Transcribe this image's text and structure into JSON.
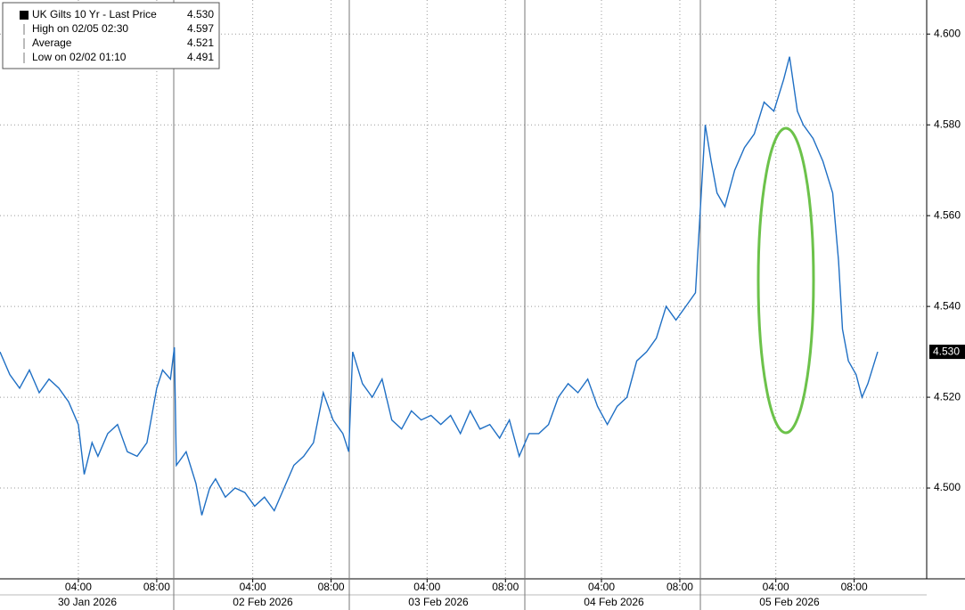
{
  "chart_data": {
    "type": "line",
    "legend": [
      {
        "label": "UK Gilts 10 Yr - Last Price",
        "value": "4.530"
      },
      {
        "label": "High on 02/05 02:30",
        "value": "4.597"
      },
      {
        "label": "Average",
        "value": "4.521"
      },
      {
        "label": "Low on 02/02 01:10",
        "value": "4.491"
      }
    ],
    "last_value": {
      "value": 4.53,
      "label": "4.530"
    },
    "days": [
      "30 Jan 2026",
      "02 Feb 2026",
      "03 Feb 2026",
      "04 Feb 2026",
      "05 Feb 2026"
    ],
    "series": [
      {
        "name": "UK Gilts 10 Yr",
        "color": "#1f6fc4",
        "x": [
          0,
          0.5,
          1,
          1.5,
          2,
          2.5,
          3,
          3.5,
          4,
          4.3,
          4.7,
          5,
          5.5,
          6,
          6.5,
          7,
          7.5,
          8,
          8.3,
          8.7,
          8.9,
          9,
          9.5,
          10,
          10.3,
          10.7,
          11,
          11.5,
          12,
          12.5,
          13,
          13.5,
          14,
          14.5,
          15,
          15.5,
          16,
          16.5,
          17,
          17.5,
          17.8,
          18,
          18.5,
          19,
          19.5,
          20,
          20.5,
          21,
          21.5,
          22,
          22.5,
          23,
          23.5,
          24,
          24.5,
          25,
          25.5,
          26,
          26.5,
          27,
          27.5,
          28,
          28.5,
          29,
          29.5,
          30,
          30.5,
          31,
          31.5,
          32,
          32.5,
          33,
          33.5,
          34,
          34.5,
          35,
          35.5,
          36,
          36.3,
          36.6,
          37,
          37.5,
          38,
          38.5,
          39,
          39.5,
          40,
          40.3,
          40.7,
          41,
          41.5,
          42,
          42.5,
          42.8,
          43,
          43.3,
          43.7,
          44,
          44.3,
          44.8
        ],
        "values": [
          4.53,
          4.525,
          4.522,
          4.526,
          4.521,
          4.524,
          4.522,
          4.519,
          4.514,
          4.503,
          4.51,
          4.507,
          4.512,
          4.514,
          4.508,
          4.507,
          4.51,
          4.522,
          4.526,
          4.524,
          4.531,
          4.505,
          4.508,
          4.501,
          4.494,
          4.5,
          4.502,
          4.498,
          4.5,
          4.499,
          4.496,
          4.498,
          4.495,
          4.5,
          4.505,
          4.507,
          4.51,
          4.521,
          4.515,
          4.512,
          4.508,
          4.53,
          4.523,
          4.52,
          4.524,
          4.515,
          4.513,
          4.517,
          4.515,
          4.516,
          4.514,
          4.516,
          4.512,
          4.517,
          4.513,
          4.514,
          4.511,
          4.515,
          4.507,
          4.512,
          4.512,
          4.514,
          4.52,
          4.523,
          4.521,
          4.524,
          4.518,
          4.514,
          4.518,
          4.52,
          4.528,
          4.53,
          4.533,
          4.54,
          4.537,
          4.54,
          4.543,
          4.58,
          4.572,
          4.565,
          4.562,
          4.57,
          4.575,
          4.578,
          4.585,
          4.583,
          4.59,
          4.595,
          4.583,
          4.58,
          4.577,
          4.572,
          4.565,
          4.55,
          4.535,
          4.528,
          4.525,
          4.52,
          4.523,
          4.53
        ]
      }
    ],
    "xlim": [
      0,
      47.3
    ],
    "xticks": [
      {
        "value": 4,
        "label": "04:00"
      },
      {
        "value": 8,
        "label": "08:00"
      },
      {
        "value": 12.9,
        "label": "04:00"
      },
      {
        "value": 16.9,
        "label": "08:00"
      },
      {
        "value": 21.8,
        "label": "04:00"
      },
      {
        "value": 25.8,
        "label": "08:00"
      },
      {
        "value": 30.7,
        "label": "04:00"
      },
      {
        "value": 34.7,
        "label": "08:00"
      },
      {
        "value": 39.6,
        "label": "04:00"
      },
      {
        "value": 43.6,
        "label": "08:00"
      }
    ],
    "ylim": [
      4.48,
      4.6075
    ],
    "yticks": [
      {
        "value": 4.5,
        "label": "4.500"
      },
      {
        "value": 4.52,
        "label": "4.520"
      },
      {
        "value": 4.54,
        "label": "4.540"
      },
      {
        "value": 4.56,
        "label": "4.560"
      },
      {
        "value": 4.58,
        "label": "4.580"
      },
      {
        "value": 4.6,
        "label": "4.600"
      }
    ],
    "grid": true
  }
}
